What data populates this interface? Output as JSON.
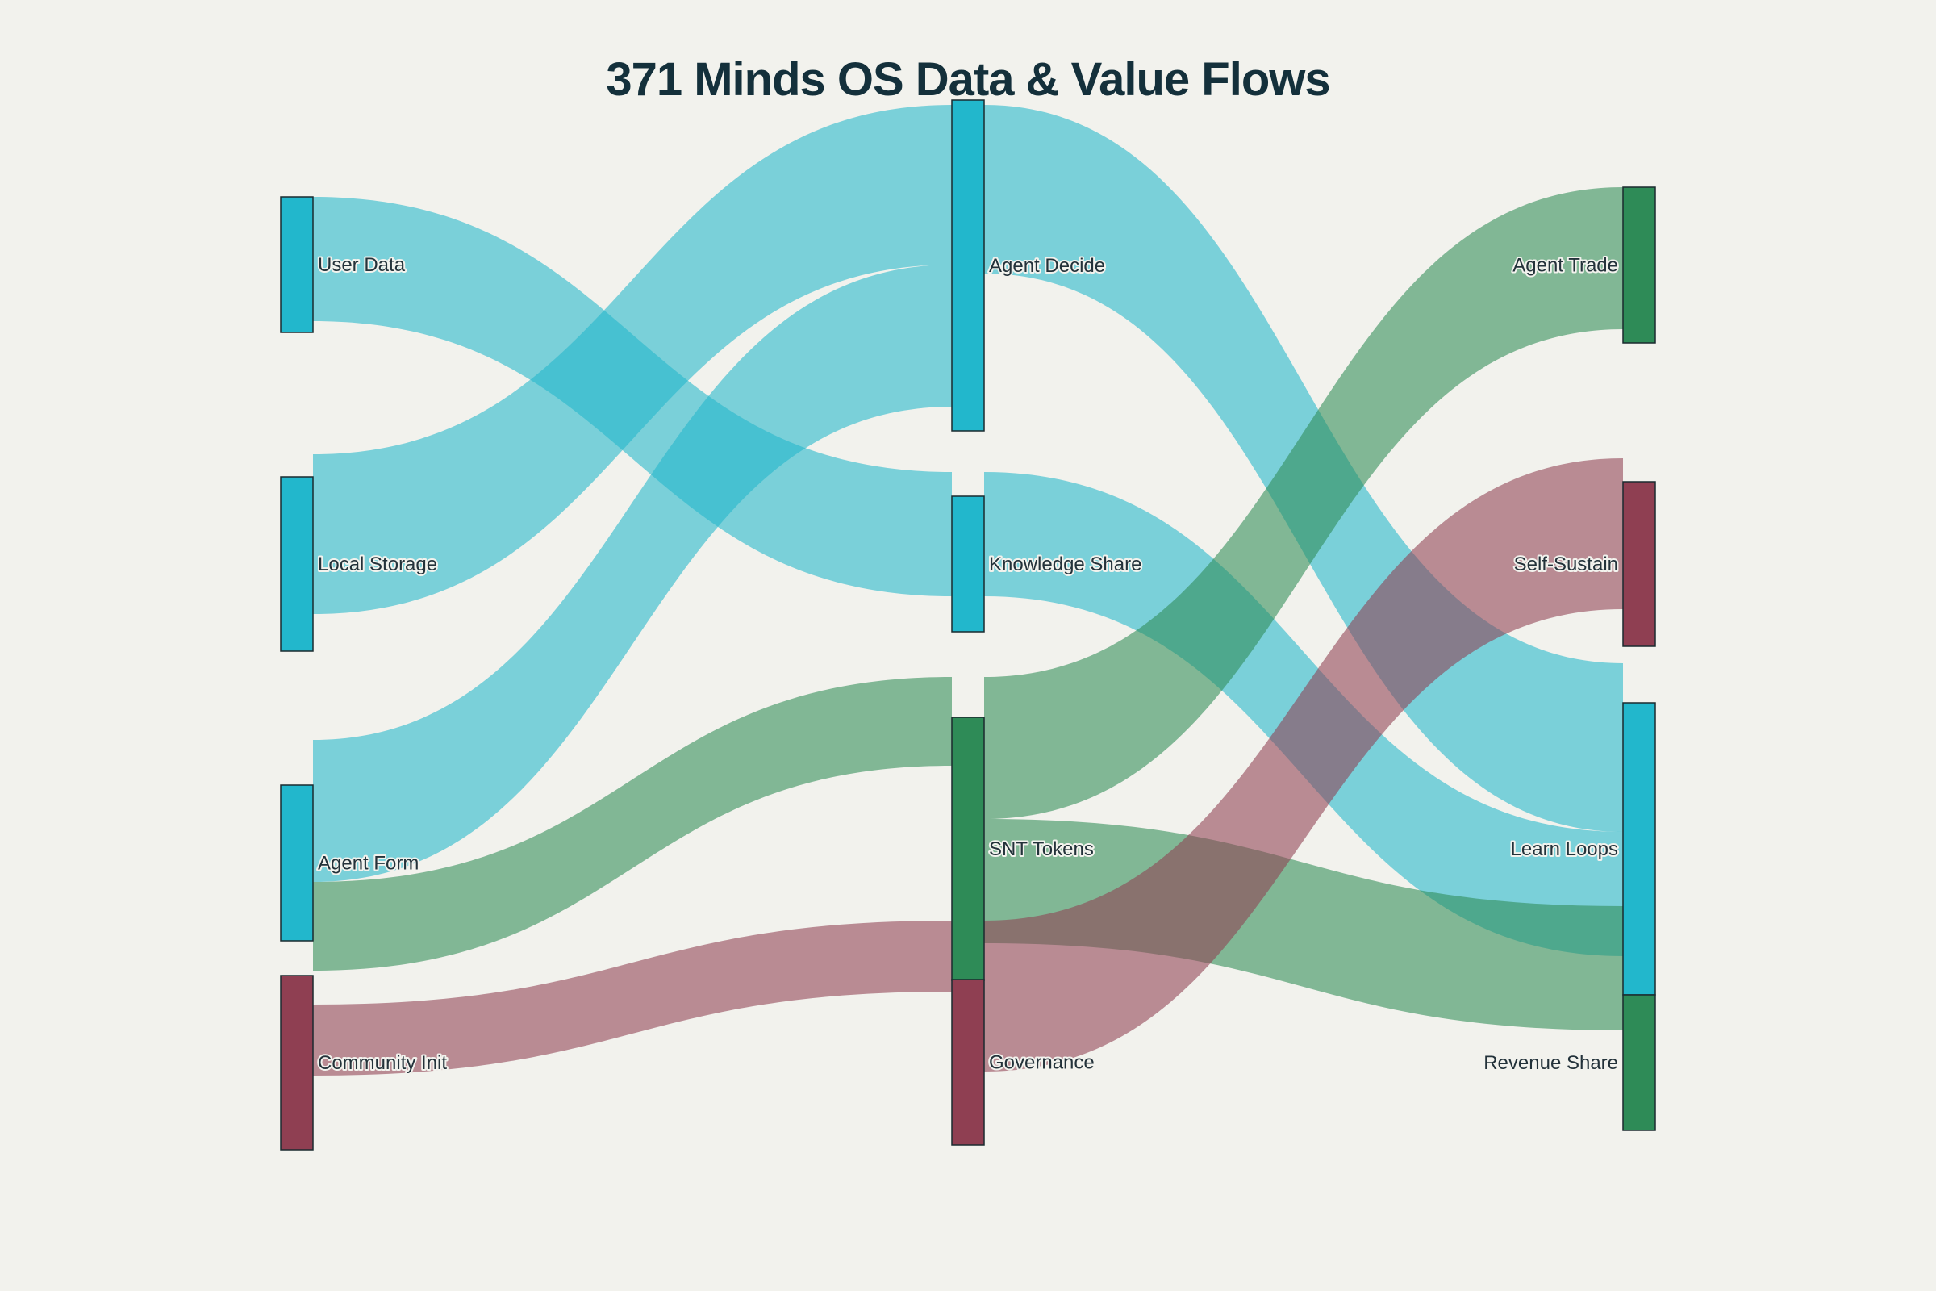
{
  "title": "371 Minds OS Data & Value Flows",
  "colors": {
    "teal": "#22b7cc",
    "green": "#2e8b57",
    "maroon": "#8f3f52",
    "teal_link": "rgba(34,183,204,0.58)",
    "green_link": "rgba(46,139,87,0.58)",
    "maroon_link": "rgba(143,63,82,0.58)"
  },
  "nodes": [
    {
      "id": "user_data",
      "label": "User Data",
      "color": "teal"
    },
    {
      "id": "local_storage",
      "label": "Local Storage",
      "color": "teal"
    },
    {
      "id": "agent_form",
      "label": "Agent Form",
      "color": "teal"
    },
    {
      "id": "community_init",
      "label": "Community Init",
      "color": "maroon"
    },
    {
      "id": "agent_decide",
      "label": "Agent Decide",
      "color": "teal"
    },
    {
      "id": "knowledge_share",
      "label": "Knowledge Share",
      "color": "teal"
    },
    {
      "id": "snt_tokens",
      "label": "SNT Tokens",
      "color": "green"
    },
    {
      "id": "governance",
      "label": "Governance",
      "color": "maroon"
    },
    {
      "id": "agent_trade",
      "label": "Agent Trade",
      "color": "green"
    },
    {
      "id": "self_sustain",
      "label": "Self-Sustain",
      "color": "maroon"
    },
    {
      "id": "learn_loops",
      "label": "Learn Loops",
      "color": "teal"
    },
    {
      "id": "revenue_share",
      "label": "Revenue Share",
      "color": "green"
    }
  ],
  "links": [
    {
      "source": "local_storage",
      "target": "agent_decide",
      "value": 18,
      "color": "teal_link"
    },
    {
      "source": "agent_form",
      "target": "agent_decide",
      "value": 16,
      "color": "teal_link"
    },
    {
      "source": "user_data",
      "target": "knowledge_share",
      "value": 14,
      "color": "teal_link"
    },
    {
      "source": "agent_form",
      "target": "snt_tokens",
      "value": 10,
      "color": "green_link"
    },
    {
      "source": "community_init",
      "target": "governance",
      "value": 8,
      "color": "maroon_link"
    },
    {
      "source": "agent_decide",
      "target": "learn_loops",
      "value": 19,
      "color": "teal_link"
    },
    {
      "source": "knowledge_share",
      "target": "learn_loops",
      "value": 14,
      "color": "teal_link"
    },
    {
      "source": "snt_tokens",
      "target": "agent_trade",
      "value": 16,
      "color": "green_link"
    },
    {
      "source": "snt_tokens",
      "target": "revenue_share",
      "value": 14,
      "color": "green_link"
    },
    {
      "source": "governance",
      "target": "self_sustain",
      "value": 17,
      "color": "maroon_link"
    }
  ]
}
